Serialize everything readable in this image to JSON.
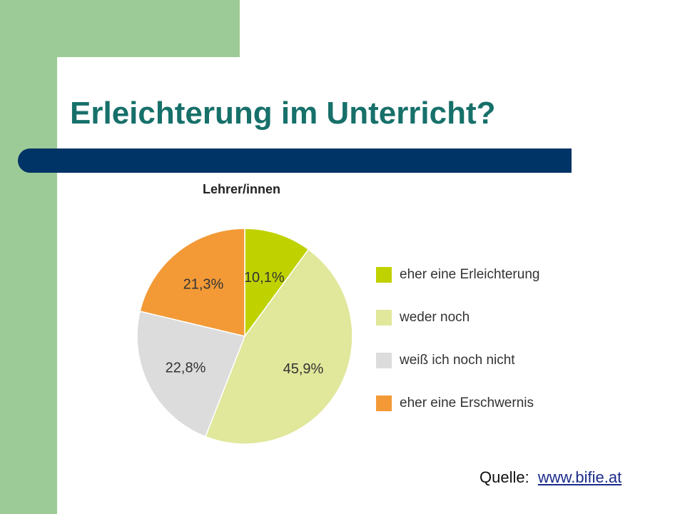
{
  "slide": {
    "title": "Erleichterung im Unterricht?",
    "source_label": "Quelle:",
    "source_link": "www.bifie.at"
  },
  "colors": {
    "green_bg": "#9dcb97",
    "title_text": "#17706a",
    "title_bar": "#003466"
  },
  "chart_data": {
    "type": "pie",
    "title": "Lehrer/innen",
    "start": "12 o'clock",
    "direction": "clockwise",
    "slices": [
      {
        "label": "eher eine Erleichterung",
        "value": 10.1,
        "value_label": "10,1%",
        "color": "#bfd200"
      },
      {
        "label": "weder noch",
        "value": 45.9,
        "value_label": "45,9%",
        "color": "#e1e79b"
      },
      {
        "label": "weiß ich noch nicht",
        "value": 22.8,
        "value_label": "22,8%",
        "color": "#dcdcdc"
      },
      {
        "label": "eher eine Erschwernis",
        "value": 21.3,
        "value_label": "21,3%",
        "color": "#f39a37"
      }
    ]
  }
}
